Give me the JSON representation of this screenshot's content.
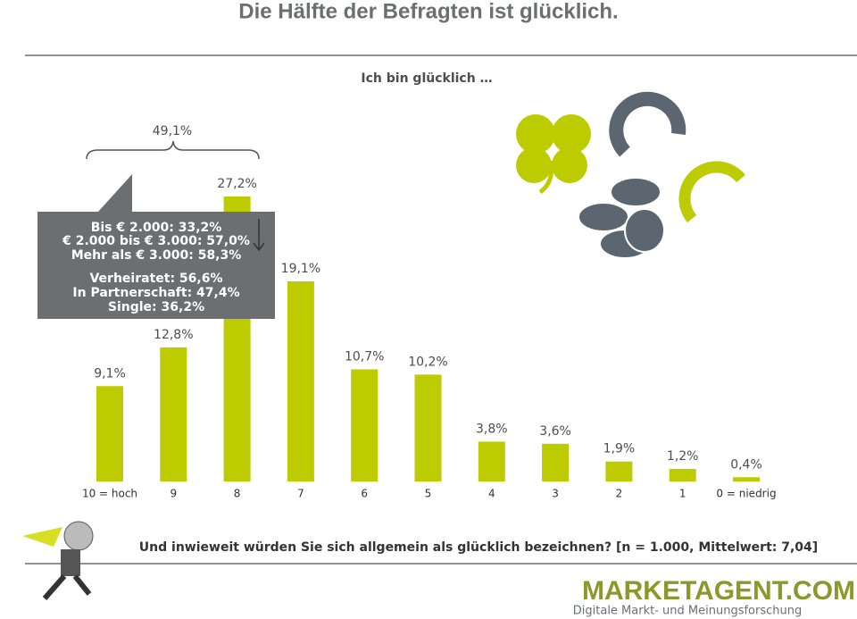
{
  "chart_data": {
    "type": "bar",
    "title": "Die Hälfte der Befragten ist glücklich.",
    "subtitle": "Ich bin glücklich …",
    "categories": [
      "10 = hoch",
      "9",
      "8",
      "7",
      "6",
      "5",
      "4",
      "3",
      "2",
      "1",
      "0 = niedrig"
    ],
    "values": [
      9.1,
      12.8,
      27.2,
      19.1,
      10.7,
      10.2,
      3.8,
      3.6,
      1.9,
      1.2,
      0.4
    ],
    "value_labels": [
      "9,1%",
      "12,8%",
      "27,2%",
      "19,1%",
      "10,7%",
      "10,2%",
      "3,8%",
      "3,6%",
      "1,9%",
      "1,2%",
      "0,4%"
    ],
    "color": "#bccc00",
    "bracket_label": "49,1%",
    "callout_income": [
      "Bis € 2.000: 33,2%",
      "€ 2.000 bis € 3.000: 57,0%",
      "Mehr als € 3.000: 58,3%"
    ],
    "callout_status": [
      "Verheiratet: 56,6%",
      "In Partnerschaft: 47,4%",
      "Single: 36,2%"
    ],
    "question": "Und inwieweit würden Sie sich allgemein als glücklich bezeichnen? [n = 1.000, Mittelwert: 7,04]",
    "logo": "MARKETAGENT.COM",
    "tagline": "Digitale Markt- und Meinungsforschung"
  }
}
